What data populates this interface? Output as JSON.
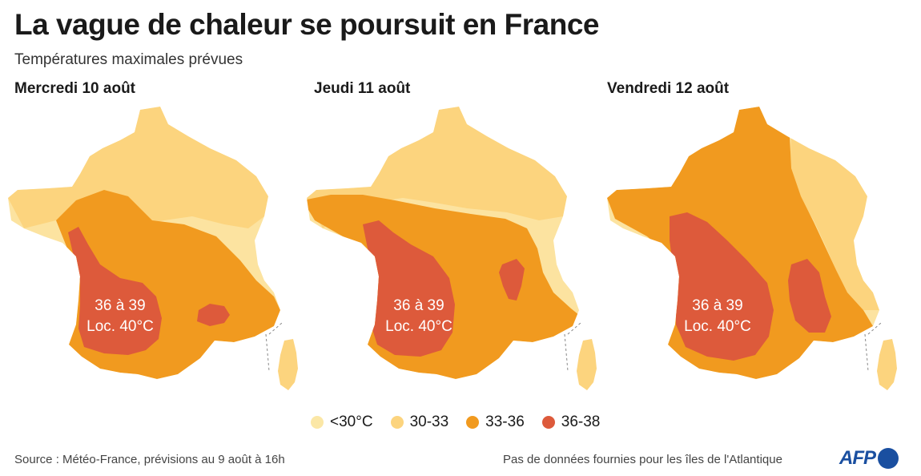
{
  "title": "La vague de chaleur se poursuit en France",
  "subtitle": "Températures maximales prévues",
  "colors": {
    "lt30": "#fbe7a6",
    "c30_33": "#fcd47e",
    "c33_36": "#f19a1f",
    "c36_38": "#dd5a3b",
    "brand": "#1a4fa0"
  },
  "maps": [
    {
      "day": "Mercredi 10 août",
      "label_line1": "36 à 39",
      "label_line2": "Loc. 40°C"
    },
    {
      "day": "Jeudi 11 août",
      "label_line1": "36 à 39",
      "label_line2": "Loc. 40°C"
    },
    {
      "day": "Vendredi 12 août",
      "label_line1": "36 à 39",
      "label_line2": "Loc. 40°C"
    }
  ],
  "legend": [
    {
      "label": "<30°C",
      "color": "#fbe7a6"
    },
    {
      "label": "30-33",
      "color": "#fcd47e"
    },
    {
      "label": "33-36",
      "color": "#f19a1f"
    },
    {
      "label": "36-38",
      "color": "#dd5a3b"
    }
  ],
  "source": "Source : Météo-France, prévisions au 9 août à 16h",
  "note": "Pas de données fournies pour les îles de l'Atlantique",
  "logo": "AFP"
}
